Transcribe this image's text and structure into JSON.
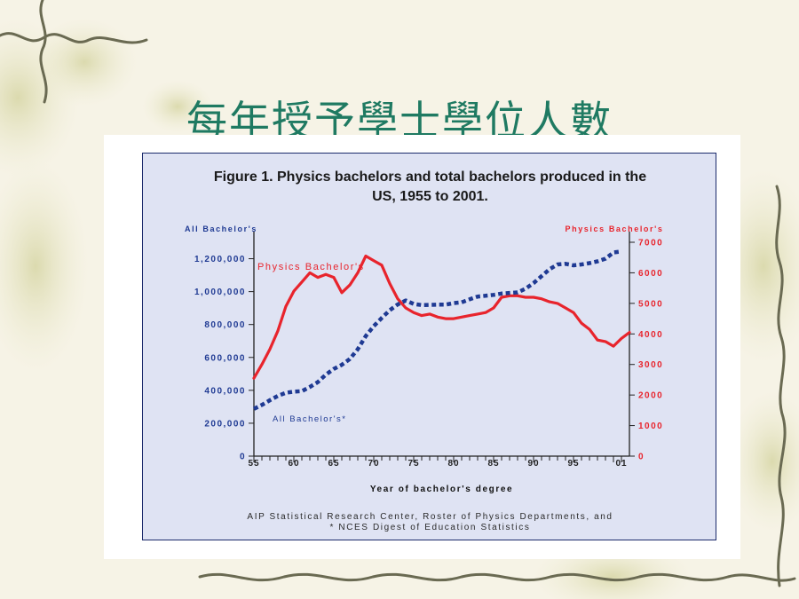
{
  "slide": {
    "title": "每年授予學士學位人數"
  },
  "colors": {
    "physics": "#e8242c",
    "all": "#1f3a93",
    "title_green": "#1f7a62",
    "figure_bg": "#dfe3f3"
  },
  "chart_data": {
    "type": "line",
    "title_line1": "Figure 1.  Physics bachelors and total bachelors produced  in the",
    "title_line2": "US, 1955 to 2001.",
    "left_axis_label": "All Bachelor's",
    "right_axis_label": "Physics Bachelor's",
    "xlabel": "Year of bachelor's degree",
    "x_ticks": [
      "55",
      "60",
      "65",
      "70",
      "75",
      "80",
      "85",
      "90",
      "95",
      "01"
    ],
    "left_ticks": [
      "0",
      "200,000",
      "400,000",
      "600,000",
      "800,000",
      "1,000,000",
      "1,200,000"
    ],
    "right_ticks": [
      "0",
      "1000",
      "2000",
      "3000",
      "4000",
      "5000",
      "6000",
      "7000"
    ],
    "left_ylim": [
      0,
      1300000
    ],
    "right_ylim": [
      0,
      7000
    ],
    "xlim": [
      1955,
      2002
    ],
    "series": [
      {
        "name": "Physics Bachelor's",
        "axis": "right",
        "style": "solid",
        "x": [
          1955,
          1956,
          1957,
          1958,
          1959,
          1960,
          1961,
          1962,
          1963,
          1964,
          1965,
          1966,
          1967,
          1968,
          1969,
          1970,
          1971,
          1972,
          1973,
          1974,
          1975,
          1976,
          1977,
          1978,
          1979,
          1980,
          1981,
          1982,
          1983,
          1984,
          1985,
          1986,
          1987,
          1988,
          1989,
          1990,
          1991,
          1992,
          1993,
          1994,
          1995,
          1996,
          1997,
          1998,
          1999,
          2000,
          2001,
          2002
        ],
        "values": [
          2550,
          3000,
          3500,
          4100,
          4900,
          5400,
          5700,
          6000,
          5850,
          5950,
          5850,
          5350,
          5600,
          6000,
          6550,
          6400,
          6250,
          5650,
          5150,
          4850,
          4700,
          4600,
          4650,
          4550,
          4500,
          4500,
          4550,
          4600,
          4650,
          4700,
          4850,
          5200,
          5250,
          5250,
          5200,
          5200,
          5150,
          5050,
          5000,
          4850,
          4700,
          4350,
          4150,
          3800,
          3750,
          3600,
          3850,
          4050
        ]
      },
      {
        "name": "All Bachelor's",
        "axis": "left",
        "style": "dashed",
        "x": [
          1955,
          1956,
          1957,
          1958,
          1959,
          1960,
          1961,
          1962,
          1963,
          1964,
          1965,
          1966,
          1967,
          1968,
          1969,
          1970,
          1971,
          1972,
          1973,
          1974,
          1975,
          1976,
          1977,
          1978,
          1979,
          1980,
          1981,
          1982,
          1983,
          1984,
          1985,
          1986,
          1987,
          1988,
          1989,
          1990,
          1991,
          1992,
          1993,
          1994,
          1995,
          1996,
          1997,
          1998,
          1999,
          2000,
          2001
        ],
        "values": [
          287000,
          311000,
          340000,
          366000,
          385000,
          392000,
          395000,
          420000,
          450000,
          495000,
          530000,
          555000,
          590000,
          650000,
          730000,
          790000,
          840000,
          887000,
          922000,
          946000,
          925000,
          918000,
          919000,
          921000,
          921000,
          930000,
          935000,
          953000,
          970000,
          975000,
          980000,
          988000,
          992000,
          995000,
          1018000,
          1052000,
          1094000,
          1136000,
          1165000,
          1169000,
          1160000,
          1165000,
          1173000,
          1184000,
          1200000,
          1238000,
          1244000
        ]
      }
    ],
    "annotations": {
      "physics_label": "Physics Bachelor's",
      "all_label": "All Bachelor's*"
    },
    "source_line1": "AIP Statistical Research Center, Roster of Physics Departments, and",
    "source_line2": "* NCES Digest of Education Statistics"
  }
}
